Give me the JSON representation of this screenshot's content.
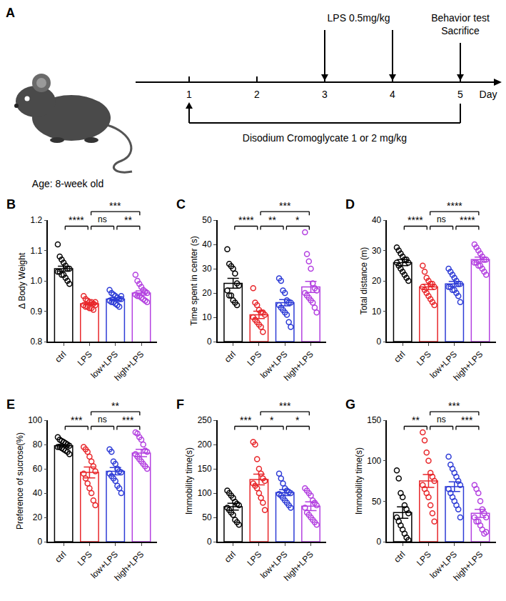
{
  "timeline": {
    "label": "A",
    "subject": "Age: 8-week old",
    "axis_label": "Day",
    "days": [
      1,
      2,
      3,
      4,
      5
    ],
    "events": [
      {
        "lines": [
          "LPS 0.5mg/kg"
        ],
        "days": [
          3,
          4
        ]
      },
      {
        "lines": [
          "Behavior test",
          "Sacrifice"
        ],
        "days": [
          5
        ]
      }
    ],
    "treatment": {
      "label": "Disodium Cromoglycate 1 or 2 mg/kg",
      "from": 1,
      "to": 5
    }
  },
  "chart_data": [
    {
      "type": "bar",
      "label": "B",
      "ylabel": "Δ Body Weight",
      "categories": [
        "ctrl",
        "LPS",
        "low+LPS",
        "high+LPS"
      ],
      "colors": [
        "#000000",
        "#e8262a",
        "#2d3bd6",
        "#b340e0"
      ],
      "marker": "circle-open",
      "values": [
        1.04,
        0.925,
        0.94,
        0.96
      ],
      "errors": [
        0.008,
        0.004,
        0.005,
        0.007
      ],
      "points": [
        [
          1.12,
          1.08,
          1.07,
          1.06,
          1.05,
          1.04,
          1.04,
          1.03,
          1.03,
          1.02,
          1.02,
          1.01,
          1.0,
          0.99
        ],
        [
          0.95,
          0.94,
          0.935,
          0.93,
          0.93,
          0.925,
          0.92,
          0.92,
          0.915,
          0.915,
          0.91,
          0.91,
          0.905,
          0.93
        ],
        [
          0.97,
          0.96,
          0.955,
          0.95,
          0.945,
          0.94,
          0.94,
          0.935,
          0.93,
          0.93,
          0.925,
          0.92,
          0.915,
          0.95
        ],
        [
          1.02,
          1.0,
          0.99,
          0.98,
          0.97,
          0.965,
          0.96,
          0.955,
          0.95,
          0.95,
          0.945,
          0.94,
          0.935,
          0.93
        ]
      ],
      "ylim": [
        0.8,
        1.2
      ],
      "yticks": [
        0.8,
        0.9,
        {
          "value": 1,
          "label": "1.0"
        },
        1.1,
        1.2
      ],
      "comparisons": [
        {
          "from": "ctrl",
          "to": "LPS",
          "label": "****"
        },
        {
          "from": "LPS",
          "to": "low+LPS",
          "label": "ns"
        },
        {
          "from": "low+LPS",
          "to": "high+LPS",
          "label": "**"
        },
        {
          "from": "LPS",
          "to": "high+LPS",
          "label": "***"
        }
      ]
    },
    {
      "type": "bar",
      "label": "C",
      "ylabel": "Time spent in center (s)",
      "categories": [
        "ctrl",
        "LPS",
        "low+LPS",
        "high+LPS"
      ],
      "colors": [
        "#000000",
        "#e8262a",
        "#2d3bd6",
        "#b340e0"
      ],
      "marker": "circle-open",
      "values": [
        24,
        11,
        16,
        22.5
      ],
      "errors": [
        2,
        1.5,
        1.3,
        2.3
      ],
      "points": [
        [
          38,
          32,
          31,
          30,
          28,
          24,
          23,
          21,
          19,
          19,
          17,
          16,
          15
        ],
        [
          22,
          16,
          15,
          13,
          12,
          12,
          11,
          10,
          9,
          8,
          7,
          6,
          4
        ],
        [
          26,
          25,
          21,
          20,
          17,
          16,
          16,
          15,
          14,
          13,
          12,
          11,
          8,
          6
        ],
        [
          45,
          36,
          33,
          30,
          24,
          22,
          21,
          20,
          19,
          18,
          17,
          16,
          14,
          12
        ]
      ],
      "ylim": [
        0,
        50
      ],
      "yticks": [
        0,
        10,
        20,
        30,
        40,
        50
      ],
      "comparisons": [
        {
          "from": "ctrl",
          "to": "LPS",
          "label": "****"
        },
        {
          "from": "LPS",
          "to": "low+LPS",
          "label": "**"
        },
        {
          "from": "low+LPS",
          "to": "high+LPS",
          "label": "*"
        },
        {
          "from": "LPS",
          "to": "high+LPS",
          "label": "***"
        }
      ]
    },
    {
      "type": "bar",
      "label": "D",
      "ylabel": "Total distance (m)",
      "categories": [
        "ctrl",
        "LPS",
        "low+LPS",
        "high+LPS"
      ],
      "colors": [
        "#000000",
        "#e8262a",
        "#2d3bd6",
        "#b340e0"
      ],
      "marker": "circle-open",
      "values": [
        26,
        18,
        19,
        27
      ],
      "errors": [
        1,
        0.9,
        0.8,
        0.8
      ],
      "points": [
        [
          31,
          30,
          29,
          28,
          27,
          27,
          26,
          26,
          25,
          24,
          23,
          22,
          21,
          20
        ],
        [
          25,
          23,
          21,
          20,
          19,
          19,
          18,
          18,
          17,
          16,
          15,
          14,
          13,
          12
        ],
        [
          24,
          23,
          22,
          21,
          20,
          19,
          19,
          18,
          18,
          17,
          17,
          16,
          15,
          13
        ],
        [
          32,
          31,
          30,
          29,
          28,
          27,
          27,
          26,
          26,
          25,
          25,
          24,
          23,
          22
        ]
      ],
      "ylim": [
        0,
        40
      ],
      "yticks": [
        0,
        10,
        20,
        30,
        40
      ],
      "comparisons": [
        {
          "from": "ctrl",
          "to": "LPS",
          "label": "****"
        },
        {
          "from": "LPS",
          "to": "low+LPS",
          "label": "ns"
        },
        {
          "from": "low+LPS",
          "to": "high+LPS",
          "label": "****"
        },
        {
          "from": "LPS",
          "to": "high+LPS",
          "label": "****"
        }
      ]
    },
    {
      "type": "bar",
      "label": "E",
      "ylabel": "Preference of sucrose(%)",
      "categories": [
        "ctrl",
        "LPS",
        "low+LPS",
        "high+LPS"
      ],
      "colors": [
        "#000000",
        "#e8262a",
        "#2d3bd6",
        "#b340e0"
      ],
      "marker": "circle-open",
      "values": [
        79,
        57,
        58,
        73
      ],
      "errors": [
        1,
        4.5,
        3,
        3
      ],
      "points": [
        [
          86,
          84,
          83,
          82,
          81,
          80,
          79,
          78,
          78,
          77,
          76,
          75,
          74,
          72
        ],
        [
          78,
          76,
          74,
          70,
          66,
          62,
          58,
          56,
          52,
          48,
          44,
          40,
          34,
          30
        ],
        [
          76,
          74,
          66,
          64,
          60,
          58,
          57,
          56,
          54,
          52,
          50,
          46,
          44,
          40
        ],
        [
          90,
          89,
          86,
          84,
          80,
          75,
          74,
          72,
          70,
          68,
          66,
          64,
          62,
          60
        ]
      ],
      "ylim": [
        0,
        100
      ],
      "yticks": [
        0,
        20,
        40,
        60,
        80,
        100
      ],
      "comparisons": [
        {
          "from": "ctrl",
          "to": "LPS",
          "label": "***"
        },
        {
          "from": "LPS",
          "to": "low+LPS",
          "label": "ns"
        },
        {
          "from": "low+LPS",
          "to": "high+LPS",
          "label": "***"
        },
        {
          "from": "LPS",
          "to": "high+LPS",
          "label": "**"
        }
      ]
    },
    {
      "type": "bar",
      "label": "F",
      "ylabel": "Immobility time(s)",
      "categories": [
        "ctrl",
        "LPS",
        "low+LPS",
        "high+LPS"
      ],
      "colors": [
        "#000000",
        "#e8262a",
        "#2d3bd6",
        "#b340e0"
      ],
      "marker": "circle-open",
      "values": [
        72,
        128,
        101,
        73
      ],
      "errors": [
        7,
        11,
        6,
        9
      ],
      "points": [
        [
          105,
          100,
          95,
          90,
          82,
          78,
          75,
          70,
          65,
          60,
          55,
          45,
          40,
          35
        ],
        [
          205,
          200,
          170,
          150,
          140,
          130,
          125,
          120,
          115,
          110,
          100,
          90,
          80,
          65
        ],
        [
          140,
          130,
          120,
          110,
          105,
          102,
          100,
          98,
          95,
          90,
          85,
          80,
          75,
          70
        ],
        [
          110,
          105,
          100,
          95,
          85,
          80,
          75,
          70,
          60,
          55,
          50,
          45,
          40,
          35
        ]
      ],
      "ylim": [
        0,
        250
      ],
      "yticks": [
        0,
        50,
        100,
        150,
        200,
        250
      ],
      "comparisons": [
        {
          "from": "ctrl",
          "to": "LPS",
          "label": "***"
        },
        {
          "from": "LPS",
          "to": "low+LPS",
          "label": "*"
        },
        {
          "from": "low+LPS",
          "to": "high+LPS",
          "label": "*"
        },
        {
          "from": "LPS",
          "to": "high+LPS",
          "label": "***"
        }
      ]
    },
    {
      "type": "bar",
      "label": "G",
      "ylabel": "Immobility time(s)",
      "categories": [
        "ctrl",
        "LPS",
        "low+LPS",
        "high+LPS"
      ],
      "colors": [
        "#000000",
        "#e8262a",
        "#2d3bd6",
        "#b340e0"
      ],
      "marker": "circle-open",
      "values": [
        36,
        75,
        68,
        35
      ],
      "errors": [
        7,
        8,
        6,
        5
      ],
      "points": [
        [
          88,
          78,
          60,
          55,
          45,
          40,
          35,
          30,
          25,
          20,
          15,
          10,
          5,
          2
        ],
        [
          135,
          125,
          110,
          100,
          85,
          80,
          75,
          70,
          65,
          60,
          55,
          45,
          35,
          25
        ],
        [
          105,
          95,
          90,
          85,
          80,
          75,
          70,
          65,
          60,
          55,
          50,
          45,
          40,
          30
        ],
        [
          70,
          65,
          60,
          50,
          40,
          35,
          30,
          30,
          25,
          25,
          20,
          15,
          10,
          12
        ]
      ],
      "ylim": [
        0,
        150
      ],
      "yticks": [
        0,
        50,
        100,
        150
      ],
      "comparisons": [
        {
          "from": "ctrl",
          "to": "LPS",
          "label": "**"
        },
        {
          "from": "LPS",
          "to": "low+LPS",
          "label": "ns"
        },
        {
          "from": "low+LPS",
          "to": "high+LPS",
          "label": "***"
        },
        {
          "from": "LPS",
          "to": "high+LPS",
          "label": "***"
        }
      ]
    }
  ]
}
